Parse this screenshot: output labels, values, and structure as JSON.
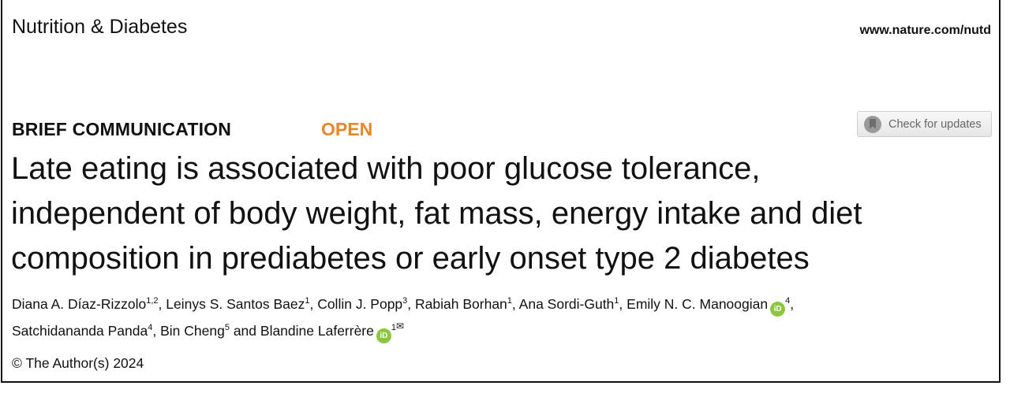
{
  "header": {
    "journal": "Nutrition & Diabetes",
    "url": "www.nature.com/nutd"
  },
  "article": {
    "type": "BRIEF COMMUNICATION",
    "access": "OPEN",
    "check_updates": "Check for updates",
    "title_lines": [
      "Late eating is associated with poor glucose tolerance,",
      "independent of body weight, fat mass, energy intake and diet",
      "composition in prediabetes or early onset type 2 diabetes"
    ],
    "authors": [
      {
        "name": "Diana A. Díaz-Rizzolo",
        "aff": "1,2",
        "sep": ", "
      },
      {
        "name": "Leinys S. Santos Baez",
        "aff": "1",
        "sep": ", "
      },
      {
        "name": "Collin J. Popp",
        "aff": "3",
        "sep": ", "
      },
      {
        "name": "Rabiah Borhan",
        "aff": "1",
        "sep": ", "
      },
      {
        "name": "Ana Sordi-Guth",
        "aff": "1",
        "sep": ", "
      },
      {
        "name": "Emily N. C. Manoogian",
        "aff": "4",
        "sep": ","
      },
      {
        "name": "Satchidananda Panda",
        "aff": "4",
        "sep": ", "
      },
      {
        "name": "Bin Cheng",
        "aff": "5",
        "sep": " and "
      },
      {
        "name": "Blandine Laferrère",
        "aff": "1",
        "sep": ""
      }
    ],
    "orcid_label": "iD",
    "mail_icon": "✉",
    "copyright": "© The Author(s) 2024"
  },
  "colors": {
    "open": "#e8862b",
    "orcid": "#8cc63f"
  }
}
